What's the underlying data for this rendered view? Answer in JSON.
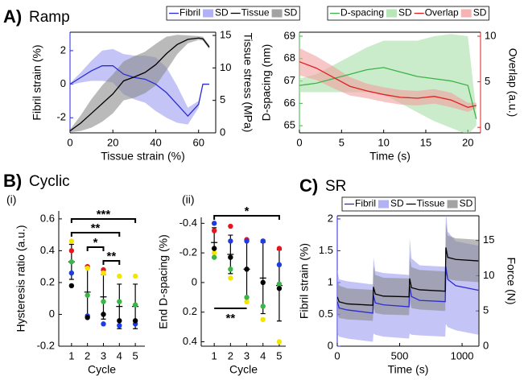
{
  "panels": [
    {
      "letter": "A)",
      "name": "Ramp"
    },
    {
      "letter": "B)",
      "name": "Cyclic"
    },
    {
      "letter": "C)",
      "name": "SR"
    }
  ],
  "chart_data": [
    {
      "type": "line",
      "xlabel": "Tissue strain (%)",
      "ylabel": "Fibril strain (%)",
      "y2label": "Tissue stress (MPa)",
      "ycolor": "#2424e0",
      "y2color": "#000000",
      "legend": true,
      "xlim": [
        0,
        68
      ],
      "xticks": [
        0,
        20,
        40,
        60
      ],
      "ylim": [
        -2.9,
        3.1
      ],
      "yticks": [
        -2,
        0,
        2
      ],
      "y2lim": [
        0,
        15.5
      ],
      "y2ticks": [
        0,
        5,
        10,
        15
      ],
      "x": [
        0,
        5,
        10,
        15,
        20,
        25,
        30,
        35,
        40,
        45,
        50,
        55,
        60,
        62,
        65
      ],
      "series": [
        {
          "name": "Fibril",
          "color": "#2b2bd6",
          "values": [
            0,
            0.4,
            0.8,
            1.1,
            1.1,
            0.6,
            0.4,
            0.3,
            0,
            -0.5,
            -1.2,
            -1.9,
            -1.2,
            0,
            0
          ],
          "sd": [
            0.05,
            0.3,
            0.6,
            0.9,
            1.0,
            1.2,
            1.3,
            1.4,
            1.6,
            1.5,
            1.1,
            0.5,
            0.2,
            0,
            0
          ],
          "sd_label": "SD",
          "sd_color": "#9d9df0"
        },
        {
          "name": "Tissue",
          "color": "#000000",
          "axis": "y2",
          "values": [
            0.3,
            1.5,
            3,
            4.5,
            6,
            8,
            8.6,
            9.3,
            10.5,
            12.2,
            13.6,
            14.4,
            14.6,
            14.5,
            13.2
          ],
          "sd": [
            0.2,
            1.2,
            2.2,
            2.8,
            3,
            3,
            3.2,
            3.2,
            3.2,
            2.6,
            1.5,
            0.6,
            0.3,
            0.3,
            0.3
          ],
          "sd_label": "SD",
          "sd_color": "#8c8c8c"
        }
      ]
    },
    {
      "type": "line",
      "xlabel": "Time (s)",
      "ylabel": "D-spacing (nm)",
      "y2label": "Overlap (a.u.)",
      "ycolor": "#3cb34a",
      "y2color": "#e02020",
      "legend": true,
      "xlim": [
        0,
        21.5
      ],
      "xticks": [
        0,
        5,
        10,
        15,
        20
      ],
      "ylim": [
        64.68,
        69.18
      ],
      "yticks": [
        65,
        66,
        67,
        68,
        69
      ],
      "y2lim": [
        -0.6,
        10.44
      ],
      "y2ticks": [
        0,
        5,
        10
      ],
      "x": [
        0,
        2,
        4,
        6,
        8,
        10,
        12,
        14,
        16,
        18,
        20,
        21
      ],
      "series": [
        {
          "name": "D-spacing",
          "color": "#3cb34a",
          "values": [
            66.8,
            66.9,
            67.1,
            67.3,
            67.5,
            67.6,
            67.4,
            67.2,
            67.1,
            67.0,
            66.8,
            65.3
          ],
          "sd": [
            0.3,
            0.4,
            0.6,
            0.8,
            1.0,
            1.2,
            1.4,
            1.6,
            1.9,
            2.1,
            2.2,
            0.3
          ],
          "sd_label": "SD",
          "sd_color": "#a8e0a8"
        },
        {
          "name": "Overlap",
          "color": "#e02020",
          "axis": "y2",
          "values": [
            7.2,
            6.5,
            5.5,
            4.5,
            4.0,
            3.6,
            3.3,
            3.2,
            3.4,
            3.0,
            2.2,
            2.4
          ],
          "sd": [
            1.5,
            1.3,
            1.2,
            1.0,
            0.8,
            0.8,
            0.8,
            0.8,
            0.8,
            0.8,
            0.5,
            0.3
          ],
          "sd_label": "SD",
          "sd_color": "#f2a0a0"
        }
      ]
    },
    {
      "type": "scatter",
      "title": "(i)",
      "xlabel": "Cycle",
      "ylabel": "Hysteresis ratio (a.u.)",
      "xlim": [
        0.2,
        5.6
      ],
      "xticks": [
        1,
        2,
        3,
        4,
        5
      ],
      "ylim": [
        -0.2,
        0.65
      ],
      "yticks": [
        -0.2,
        0,
        0.2,
        0.4,
        0.6
      ],
      "x": [
        1,
        2,
        3,
        4,
        5
      ],
      "series": [
        {
          "color": "#e8141e",
          "values": [
            0.4,
            0.3,
            0.28,
            null,
            null
          ]
        },
        {
          "color": "#f2e600",
          "values": [
            0.46,
            0.29,
            0.26,
            0.24,
            0.24
          ]
        },
        {
          "color": "#3bb54a",
          "values": [
            0.33,
            0.12,
            0.08,
            0.08,
            0.06
          ]
        },
        {
          "color": "#1f3ce0",
          "values": [
            0.26,
            -0.01,
            -0.06,
            -0.07,
            -0.06
          ]
        },
        {
          "color": "#000000",
          "values": [
            0.18,
            -0.02,
            0.0,
            -0.04,
            -0.04
          ]
        },
        {
          "color": "#000000",
          "values": [
            0.33,
            0.14,
            0.11,
            0.05,
            0.05
          ],
          "errors": [
            0.11,
            0.15,
            0.14,
            0.14,
            0.14
          ]
        }
      ],
      "annotations": [
        {
          "text": "***",
          "from": 1,
          "to": 5
        },
        {
          "text": "**",
          "from": 1,
          "to": 4
        },
        {
          "text": "*",
          "from": 2,
          "to": 3
        },
        {
          "text": "**",
          "from": 3,
          "to": 4
        }
      ]
    },
    {
      "type": "scatter",
      "title": "(ii)",
      "xlabel": "Cycle",
      "ylabel": "End D-spacing (%)",
      "xlim": [
        0.2,
        5.4
      ],
      "xticks": [
        1,
        2,
        3,
        4,
        5
      ],
      "ylim": [
        0.43,
        -0.44
      ],
      "yticks": [
        -0.4,
        -0.2,
        0,
        0.2,
        0.4
      ],
      "x": [
        1,
        2,
        3,
        4,
        5
      ],
      "series": [
        {
          "color": "#e8141e",
          "values": [
            -0.35,
            -0.38,
            -0.29,
            -0.28,
            -0.23
          ]
        },
        {
          "color": "#f2e600",
          "values": [
            -0.2,
            -0.03,
            0.13,
            0.25,
            0.4
          ]
        },
        {
          "color": "#3bb54a",
          "values": [
            -0.17,
            -0.09,
            0.1,
            0.16,
            0.01
          ]
        },
        {
          "color": "#1f3ce0",
          "values": [
            -0.4,
            -0.28,
            -0.28,
            -0.28,
            -0.12
          ]
        },
        {
          "color": "#000000",
          "values": [
            -0.23,
            -0.17,
            -0.09,
            0,
            0.04
          ]
        },
        {
          "color": "#000000",
          "values": [
            -0.27,
            -0.19,
            -0.09,
            -0.03,
            0.02
          ],
          "errors": [
            0.1,
            0.13,
            0.19,
            0.24,
            0.24
          ]
        }
      ],
      "annotations": [
        {
          "text": "*",
          "from": 1,
          "to": 5
        },
        {
          "text": "**",
          "from": 1,
          "to": 3
        }
      ]
    },
    {
      "type": "line",
      "xlabel": "Time (s)",
      "ylabel": "Fibril strain (%)",
      "y2label": "Force (N)",
      "ycolor": "#2424e0",
      "y2color": "#000000",
      "legend": true,
      "xlim": [
        0,
        1135
      ],
      "xticks": [
        0,
        500,
        1000
      ],
      "ylim": [
        0,
        2.05
      ],
      "yticks": [
        0,
        0.5,
        1,
        1.5,
        2
      ],
      "y2lim": [
        0,
        18.5
      ],
      "y2ticks": [
        0,
        5,
        10,
        15
      ],
      "x": [
        0,
        15,
        80,
        285,
        290,
        305,
        370,
        575,
        580,
        595,
        660,
        865,
        870,
        885,
        950,
        1130
      ],
      "series": [
        {
          "name": "Fibril",
          "color": "#2b2bd6",
          "values": [
            0.7,
            0.6,
            0.57,
            0.52,
            0.8,
            0.68,
            0.65,
            0.62,
            0.95,
            0.78,
            0.72,
            0.7,
            1.25,
            1.05,
            0.95,
            0.88
          ],
          "sd": [
            0.5,
            0.45,
            0.45,
            0.45,
            0.6,
            0.5,
            0.5,
            0.5,
            0.75,
            0.6,
            0.55,
            0.55,
            0.9,
            0.75,
            0.7,
            0.7
          ],
          "sd_label": "SD",
          "sd_color": "#9d9df0"
        },
        {
          "name": "Tissue",
          "color": "#000000",
          "axis": "y2",
          "values": [
            7,
            6.3,
            6,
            5.8,
            8.4,
            7.4,
            7.1,
            7,
            9.6,
            8.3,
            8,
            7.8,
            14,
            12.6,
            12.3,
            12.1
          ],
          "sd": [
            2.5,
            2.3,
            2.2,
            2.2,
            3,
            2.7,
            2.6,
            2.6,
            3.2,
            2.9,
            2.8,
            2.8,
            3.5,
            3.1,
            3,
            3
          ],
          "sd_label": "SD",
          "sd_color": "#8c8c8c"
        }
      ]
    }
  ]
}
